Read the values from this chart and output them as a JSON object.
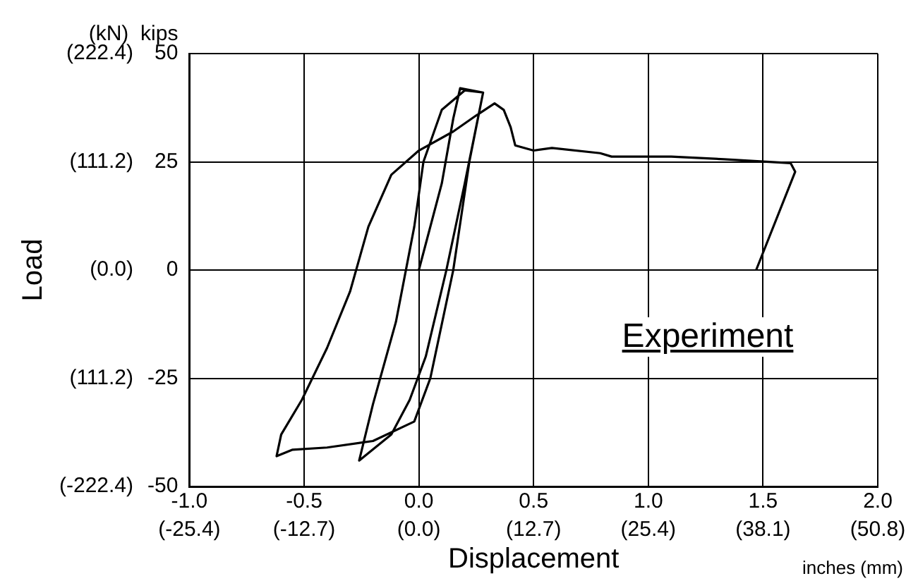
{
  "chart_data": {
    "type": "line",
    "xlabel": "Displacement",
    "ylabel": "Load",
    "annotations": [
      "(kN)  kips",
      "inches (mm)",
      "Experiment"
    ],
    "x": [
      0,
      0.1,
      0.15,
      0.18,
      0.28,
      0.2,
      0.12,
      0.03,
      -0.04,
      -0.12,
      -0.26,
      -0.2,
      -0.1,
      -0.02,
      0.02,
      0.1,
      0.2,
      0.28,
      0.22,
      0.15,
      0.05,
      -0.02,
      -0.2,
      -0.4,
      -0.55,
      -0.62,
      -0.6,
      -0.51,
      -0.4,
      -0.3,
      -0.22,
      -0.12,
      0,
      0.15,
      0.25,
      0.33,
      0.37,
      0.4,
      0.42,
      0.5,
      0.58,
      0.79,
      0.84,
      1.1,
      1.33,
      1.62,
      1.64,
      1.47
    ],
    "series": [
      {
        "color": "#000000",
        "axis": "y2",
        "values": [
          0,
          20,
          35,
          42,
          41,
          20,
          0,
          -20,
          -30,
          -38,
          -44,
          -31,
          -12,
          10,
          25,
          37,
          41.5,
          41,
          25,
          0,
          -25,
          -35,
          -39.5,
          -41,
          -41.5,
          -43,
          -38,
          -30,
          -18,
          -5,
          10,
          22,
          27.6,
          32,
          35.7,
          38.5,
          37,
          33,
          28.8,
          27.6,
          28.2,
          27,
          26.2,
          26.2,
          25.6,
          24.7,
          22.7,
          0
        ]
      }
    ],
    "xlim": [
      -1,
      2
    ],
    "y2lim": [
      -50,
      50
    ],
    "xticks": [
      {
        "value": -1,
        "label": "-1.0"
      },
      {
        "value": -0.5,
        "label": "-0.5"
      },
      {
        "value": 0,
        "label": "0.0"
      },
      {
        "value": 0.5,
        "label": "0.5"
      },
      {
        "value": 1,
        "label": "1.0"
      },
      {
        "value": 1.5,
        "label": "1.5"
      },
      {
        "value": 2,
        "label": "2.0"
      }
    ],
    "y2ticks": [
      -50,
      -25,
      0,
      25,
      50
    ],
    "x2lim": [
      -25.4,
      50.8
    ],
    "x2ticks": [
      {
        "value": -25.4,
        "label": "(-25.4)"
      },
      {
        "value": -12.7,
        "label": "(-12.7)"
      },
      {
        "value": 0,
        "label": "(0.0)"
      },
      {
        "value": 12.7,
        "label": "(12.7)"
      },
      {
        "value": 25.4,
        "label": "(25.4)"
      },
      {
        "value": 38.1,
        "label": "(38.1)"
      },
      {
        "value": 50.8,
        "label": "(50.8)"
      }
    ],
    "ylim": [
      -222.4,
      222.4
    ],
    "yticks": [
      {
        "value": -222.4,
        "label": "(-222.4)"
      },
      {
        "value": -111.2,
        "label": "(111.2)"
      },
      {
        "value": 0,
        "label": "(0.0)"
      },
      {
        "value": 111.2,
        "label": "(111.2)"
      },
      {
        "value": 222.4,
        "label": "(222.4)"
      }
    ],
    "grid": true,
    "legend": false,
    "marker": "none",
    "line_style": "solid"
  }
}
